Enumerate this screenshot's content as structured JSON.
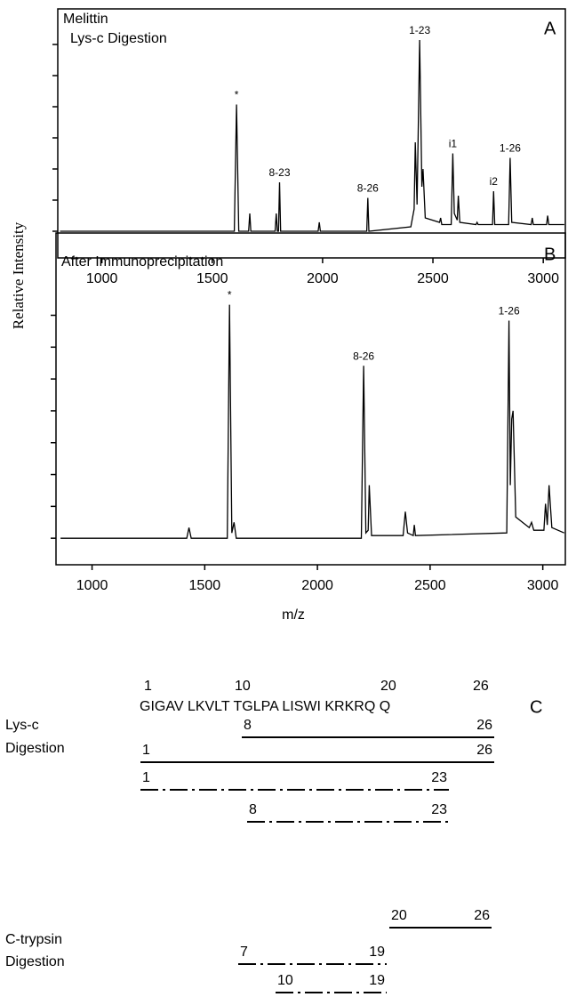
{
  "chart_data": [
    {
      "type": "line",
      "title": [
        "Melittin",
        "Lys-c Digestion"
      ],
      "panel": "A",
      "xlim": [
        800,
        3100
      ],
      "xticks": [
        1000,
        1500,
        2000,
        2500,
        3000
      ],
      "ylim": [
        -12,
        100
      ],
      "yticks": [
        0,
        14,
        28,
        42,
        56,
        70,
        84
      ],
      "series": [
        {
          "color": "#000000",
          "x": [
            810,
            1600,
            1610,
            1620,
            1665,
            1670,
            1675,
            1785,
            1790,
            1795,
            1800,
            1805,
            1810,
            1980,
            1985,
            1990,
            2200,
            2205,
            2210,
            2400,
            2415,
            2420,
            2428,
            2440,
            2450,
            2455,
            2465,
            2530,
            2535,
            2540,
            2583,
            2590,
            2597,
            2610,
            2615,
            2622,
            2695,
            2700,
            2705,
            2770,
            2775,
            2780,
            2843,
            2850,
            2857,
            2945,
            2950,
            2955,
            3015,
            3020,
            3025,
            3095
          ],
          "values": [
            0,
            0,
            57,
            0,
            0,
            8,
            0,
            0,
            8,
            0,
            0,
            22,
            0,
            0,
            4,
            0,
            0,
            15,
            0,
            2,
            10,
            40,
            12,
            86,
            20,
            28,
            6,
            4,
            6,
            3,
            3,
            35,
            8,
            5,
            16,
            4,
            3,
            4,
            3,
            3,
            18,
            3,
            3,
            33,
            4,
            3,
            6,
            3,
            3,
            7,
            3,
            3
          ]
        }
      ],
      "annotations": [
        {
          "text": "*",
          "x": 1610
        },
        {
          "text": "8-23",
          "x": 1805
        },
        {
          "text": "8-26",
          "x": 2205
        },
        {
          "text": "1-23",
          "x": 2440
        },
        {
          "text": "i1",
          "x": 2590
        },
        {
          "text": "i2",
          "x": 2775
        },
        {
          "text": "1-26",
          "x": 2850
        }
      ]
    },
    {
      "type": "line",
      "title": [
        "After Immunoprecipitation"
      ],
      "panel": "B",
      "x_label": "m/z",
      "xlim": [
        840,
        3100
      ],
      "xticks": [
        1000,
        1500,
        2000,
        2500,
        3000
      ],
      "ylim": [
        -10,
        115
      ],
      "yticks": [
        0,
        12,
        24,
        36,
        48,
        60,
        72,
        84
      ],
      "series": [
        {
          "color": "#000000",
          "x": [
            860,
            1420,
            1430,
            1440,
            1600,
            1610,
            1620,
            1630,
            1640,
            2195,
            2205,
            2215,
            2225,
            2230,
            2240,
            2380,
            2390,
            2400,
            2425,
            2430,
            2435,
            2840,
            2850,
            2856,
            2862,
            2868,
            2880,
            2940,
            2950,
            2960,
            3005,
            3012,
            3020,
            3028,
            3040,
            3095
          ],
          "values": [
            0,
            0,
            4,
            0,
            0,
            88,
            2,
            6,
            0,
            0,
            65,
            2,
            3,
            20,
            1,
            1,
            10,
            2,
            1,
            5,
            1,
            2,
            82,
            20,
            45,
            48,
            8,
            4,
            6,
            3,
            3,
            13,
            5,
            20,
            4,
            2
          ]
        }
      ],
      "annotations": [
        {
          "text": "*",
          "x": 1610
        },
        {
          "text": "8-26",
          "x": 2205
        },
        {
          "text": "1-26",
          "x": 2850
        }
      ]
    }
  ],
  "y_label": "Relative Intensity",
  "panel_c": {
    "panel": "C",
    "positions": [
      "1",
      "10",
      "20",
      "26"
    ],
    "sequence": "GIGAV LKVLT TGLPA LISWI KRKRQ Q",
    "groups": [
      {
        "name": [
          "Lys-c",
          "Digestion"
        ],
        "fragments": [
          {
            "start": "8",
            "end": "26",
            "style": "solid"
          },
          {
            "start": "1",
            "end": "26",
            "style": "solid"
          },
          {
            "start": "1",
            "end": "23",
            "style": "dash-dot"
          },
          {
            "start": "8",
            "end": "23",
            "style": "dash-dot"
          }
        ]
      },
      {
        "name": [
          "C-trypsin",
          "Digestion"
        ],
        "fragments": [
          {
            "start": "20",
            "end": "26",
            "style": "solid"
          },
          {
            "start": "7",
            "end": "19",
            "style": "dash-dot"
          },
          {
            "start": "10",
            "end": "19",
            "style": "dash-dot"
          }
        ]
      }
    ]
  }
}
